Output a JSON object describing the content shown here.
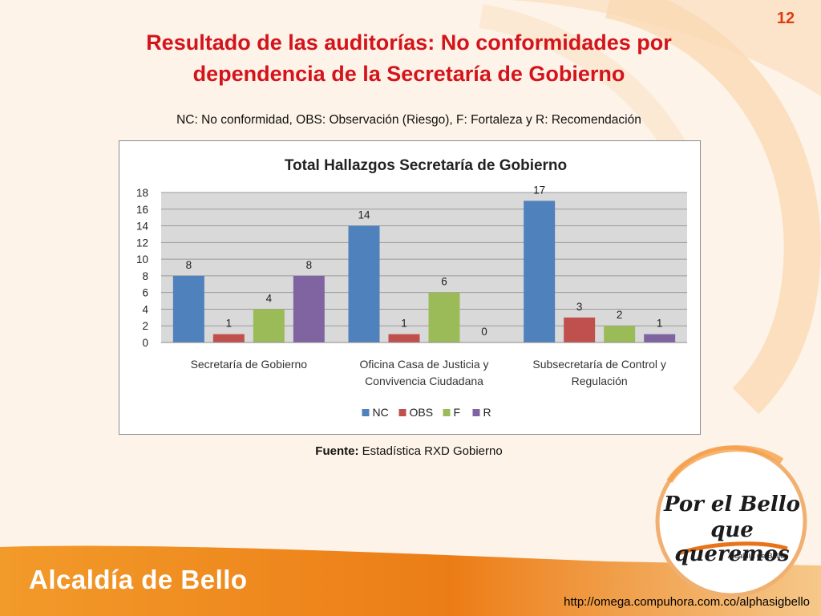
{
  "slide": {
    "page_number": "12",
    "title_line1": "Resultado de las auditorías: No conformidades por",
    "title_line2": "dependencia de la Secretaría de Gobierno",
    "subtitle": "NC: No conformidad, OBS: Observación (Riesgo), F: Fortaleza y R: Recomendación",
    "source_label": "Fuente:",
    "source_text": "Estadística RXD Gobierno",
    "logo_line1": "Por el Bello",
    "logo_line2": "que queremos",
    "logo_small": "Alcaldía de Bello",
    "footer_brand": "Alcaldía de Bello",
    "url": "http://omega.compuhora.com.co/alphasigbello"
  },
  "colors": {
    "title": "#d4131b",
    "page_number": "#e03a10",
    "orange_band": "#ea7a14"
  },
  "chart_data": {
    "type": "bar",
    "title": "Total Hallazgos Secretaría de Gobierno",
    "categories": [
      [
        "Secretaría de Gobierno"
      ],
      [
        "Oficina Casa de Justicia y",
        "Convivencia Ciudadana"
      ],
      [
        "Subsecretaría de Control y",
        "Regulación"
      ]
    ],
    "series": [
      {
        "name": "NC",
        "color": "#4f81bd",
        "values": [
          8,
          14,
          17
        ]
      },
      {
        "name": "OBS",
        "color": "#c0504d",
        "values": [
          1,
          1,
          3
        ]
      },
      {
        "name": "F",
        "color": "#9bbb59",
        "values": [
          4,
          6,
          2
        ]
      },
      {
        "name": "R",
        "color": "#8064a2",
        "values": [
          8,
          0,
          1
        ]
      }
    ],
    "ylim": [
      0,
      18
    ],
    "yticks": [
      0,
      2,
      4,
      6,
      8,
      10,
      12,
      14,
      16,
      18
    ],
    "grid": true,
    "legend": "bottom",
    "xlabel": "",
    "ylabel": ""
  }
}
